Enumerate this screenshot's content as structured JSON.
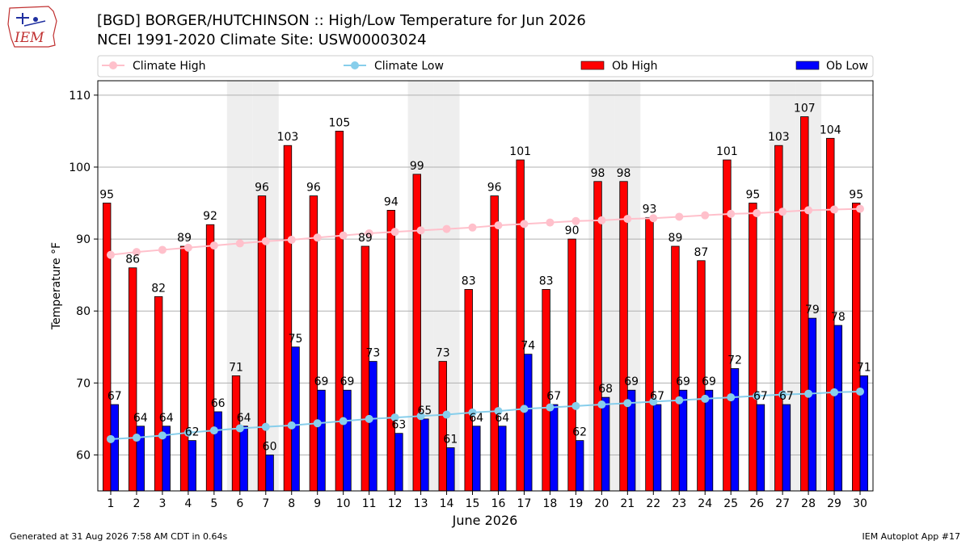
{
  "header": {
    "logo_text": "IEM",
    "title_line1": "[BGD] BORGER/HUTCHINSON :: High/Low Temperature for Jun 2026",
    "title_line2": "NCEI 1991-2020 Climate Site: USW00003024"
  },
  "footer": {
    "generated": "Generated at 31 Aug 2026 7:58 AM CDT in 0.64s",
    "app": "IEM Autoplot App #17"
  },
  "colors": {
    "climate_high": "#ffc0cb",
    "climate_low": "#87ceeb",
    "ob_high": "#ff0000",
    "ob_low": "#0000ff",
    "weekend_shade": "#eeeeee",
    "grid": "#b0b0b0"
  },
  "chart_data": {
    "type": "bar",
    "xlabel": "June 2026",
    "ylabel": "Temperature °F",
    "ylim": [
      55,
      112
    ],
    "yticks": [
      60,
      70,
      80,
      90,
      100,
      110
    ],
    "grid": "horizontal",
    "legend_placement": "top, above plot",
    "categories": [
      "1",
      "2",
      "3",
      "4",
      "5",
      "6",
      "7",
      "8",
      "9",
      "10",
      "11",
      "12",
      "13",
      "14",
      "15",
      "16",
      "17",
      "18",
      "19",
      "20",
      "21",
      "22",
      "23",
      "24",
      "25",
      "26",
      "27",
      "28",
      "29",
      "30"
    ],
    "weekend_days": [
      6,
      7,
      13,
      14,
      20,
      21,
      27,
      28
    ],
    "series": [
      {
        "name": "Climate High",
        "kind": "line",
        "values": [
          87.8,
          88.2,
          88.5,
          88.8,
          89.1,
          89.4,
          89.7,
          89.9,
          90.2,
          90.5,
          90.8,
          91.0,
          91.2,
          91.4,
          91.6,
          91.9,
          92.1,
          92.3,
          92.5,
          92.6,
          92.8,
          92.9,
          93.1,
          93.3,
          93.5,
          93.6,
          93.8,
          94.0,
          94.1,
          94.2
        ]
      },
      {
        "name": "Climate Low",
        "kind": "line",
        "values": [
          62.2,
          62.4,
          62.7,
          63.1,
          63.4,
          63.7,
          63.9,
          64.1,
          64.4,
          64.7,
          65.0,
          65.2,
          65.4,
          65.6,
          65.9,
          66.1,
          66.4,
          66.6,
          66.8,
          67.0,
          67.2,
          67.4,
          67.6,
          67.8,
          68.0,
          68.2,
          68.4,
          68.5,
          68.7,
          68.8
        ]
      },
      {
        "name": "Ob High",
        "kind": "bar",
        "values": [
          95,
          86,
          82,
          89,
          92,
          71,
          96,
          103,
          96,
          105,
          89,
          94,
          99,
          73,
          83,
          96,
          101,
          83,
          90,
          98,
          98,
          93,
          89,
          87,
          101,
          95,
          103,
          107,
          104,
          95
        ]
      },
      {
        "name": "Ob Low",
        "kind": "bar",
        "values": [
          67,
          64,
          64,
          62,
          66,
          64,
          60,
          75,
          69,
          69,
          73,
          63,
          65,
          61,
          64,
          64,
          74,
          67,
          62,
          68,
          69,
          67,
          69,
          69,
          72,
          67,
          67,
          79,
          78,
          71
        ]
      }
    ]
  }
}
